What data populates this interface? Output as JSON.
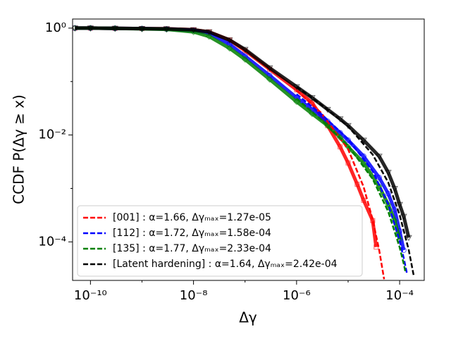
{
  "chart_data": {
    "type": "scatter",
    "xlabel": "Δγ",
    "ylabel": "CCDF  P(Δγ ≥ x)",
    "xscale": "log",
    "yscale": "log",
    "xlim": [
      4.5e-11,
      0.0003
    ],
    "ylim": [
      1.9e-05,
      1.48
    ],
    "xticks": [
      {
        "value": 1e-10,
        "label": "10⁻¹⁰"
      },
      {
        "value": 1e-08,
        "label": "10⁻⁸"
      },
      {
        "value": 1e-06,
        "label": "10⁻⁶"
      },
      {
        "value": 0.0001,
        "label": "10⁻⁴"
      }
    ],
    "yticks": [
      {
        "value": 0.0001,
        "label": "10⁻⁴"
      },
      {
        "value": 0.01,
        "label": "10⁻²"
      },
      {
        "value": 1,
        "label": "10⁰"
      }
    ],
    "xminor": [
      1e-09,
      1e-07,
      1e-05
    ],
    "yminor": [
      0.001,
      0.1
    ],
    "legend": "lower left",
    "series": [
      {
        "name": "[001] : α=1.66, Δγₘₐₓ=1.27e-05",
        "color": "#ff0000",
        "marker": "square",
        "x": [
          5e-11,
          1e-10,
          3e-10,
          1e-09,
          3e-09,
          1e-08,
          2e-08,
          5e-08,
          1e-07,
          3e-07,
          1e-06,
          2e-06,
          4e-06,
          7e-06,
          1e-05,
          1.5e-05,
          2e-05,
          3e-05,
          3.5e-05
        ],
        "values": [
          1,
          1,
          0.99,
          0.98,
          0.97,
          0.93,
          0.85,
          0.6,
          0.38,
          0.17,
          0.07,
          0.04,
          0.015,
          0.006,
          0.003,
          0.0012,
          0.0006,
          0.00025,
          8e-05
        ],
        "fit_x": [
          1e-06,
          3e-06,
          1e-05,
          2e-05,
          3e-05,
          4e-05,
          5e-05
        ],
        "fit_y": [
          0.068,
          0.026,
          0.0054,
          0.00107,
          0.00026,
          7.1e-05,
          2e-05
        ]
      },
      {
        "name": "[112] : α=1.72, Δγₘₐₓ=1.58e-04",
        "color": "#0000ff",
        "marker": "circle",
        "x": [
          5e-11,
          1e-10,
          3e-10,
          1e-09,
          3e-09,
          1e-08,
          2e-08,
          5e-08,
          1e-07,
          3e-07,
          1e-06,
          2e-06,
          4e-06,
          7e-06,
          1e-05,
          2e-05,
          4e-05,
          6e-05,
          8e-05,
          0.0001,
          0.00012
        ],
        "values": [
          1,
          1,
          0.99,
          0.98,
          0.96,
          0.9,
          0.8,
          0.5,
          0.3,
          0.13,
          0.05,
          0.03,
          0.018,
          0.011,
          0.008,
          0.004,
          0.0016,
          0.0008,
          0.0004,
          0.00016,
          7e-05
        ],
        "fit_x": [
          1e-06,
          3e-06,
          1e-05,
          3e-05,
          6e-05,
          0.0001,
          0.00012,
          0.00014
        ],
        "fit_y": [
          0.058,
          0.0248,
          0.0084,
          0.0021,
          0.00051,
          0.000105,
          5e-05,
          2.45e-05
        ]
      },
      {
        "name": "[135] : α=1.77, Δγₘₐₓ=2.33e-04",
        "color": "#008000",
        "marker": "diamond",
        "x": [
          5e-11,
          1e-10,
          3e-10,
          1e-09,
          3e-09,
          1e-08,
          2e-08,
          5e-08,
          1e-07,
          3e-07,
          1e-06,
          2e-06,
          4e-06,
          7e-06,
          1e-05,
          2e-05,
          4e-05,
          6e-05,
          8e-05,
          0.0001
        ],
        "values": [
          1,
          1,
          0.99,
          0.97,
          0.95,
          0.85,
          0.7,
          0.42,
          0.26,
          0.11,
          0.042,
          0.025,
          0.015,
          0.009,
          0.006,
          0.003,
          0.0011,
          0.0005,
          0.00025,
          0.00011
        ],
        "fit_x": [
          1e-06,
          3e-06,
          1e-05,
          3e-05,
          6e-05,
          0.0001,
          0.00012,
          0.00013
        ],
        "fit_y": [
          0.048,
          0.0194,
          0.0063,
          0.0015,
          0.00037,
          7.9e-05,
          3.9e-05,
          2.7e-05
        ]
      },
      {
        "name": "[Latent hardening] : α=1.64, Δγₘₐₓ=2.42e-04",
        "color": "#000000",
        "marker": "triangle",
        "x": [
          5e-11,
          1e-10,
          3e-10,
          1e-09,
          3e-09,
          1e-08,
          2e-08,
          5e-08,
          1e-07,
          3e-07,
          1e-06,
          2e-06,
          4e-06,
          7e-06,
          1e-05,
          2e-05,
          4e-05,
          6e-05,
          8e-05,
          0.0001,
          0.00012,
          0.00015
        ],
        "values": [
          1,
          1,
          0.99,
          0.98,
          0.97,
          0.93,
          0.85,
          0.6,
          0.4,
          0.18,
          0.08,
          0.05,
          0.03,
          0.02,
          0.015,
          0.008,
          0.004,
          0.002,
          0.001,
          0.0005,
          0.0003,
          0.00012
        ],
        "fit_x": [
          1e-06,
          3e-06,
          1e-05,
          3e-05,
          6e-05,
          0.0001,
          0.00015,
          0.00019
        ],
        "fit_y": [
          0.08,
          0.037,
          0.0145,
          0.0043,
          0.0013,
          0.00032,
          7.1e-05,
          2.2e-05
        ]
      }
    ]
  }
}
